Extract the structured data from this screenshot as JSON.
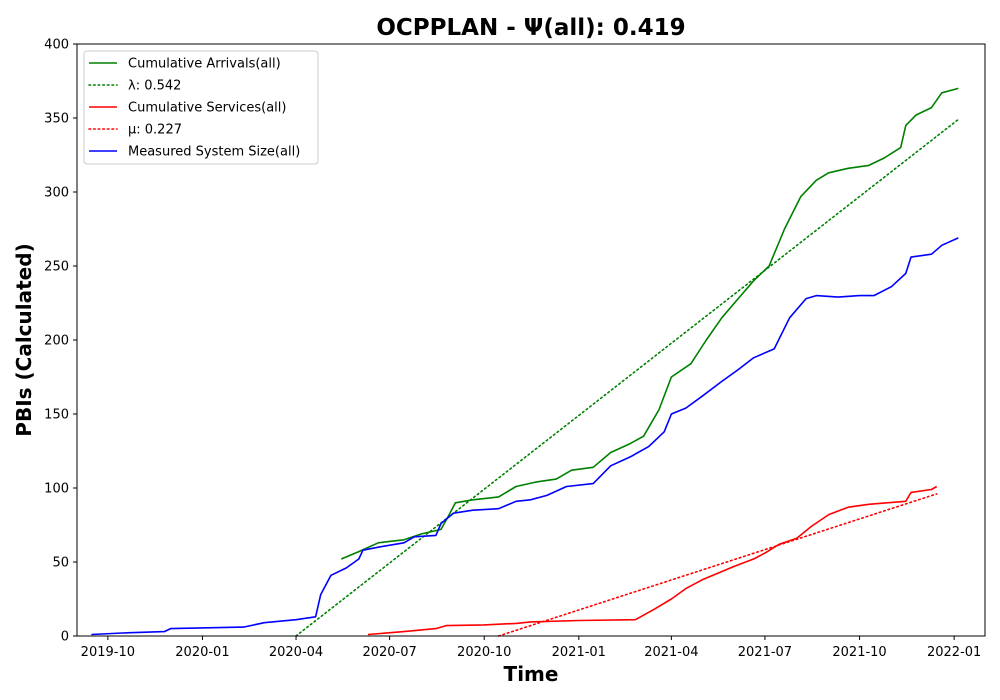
{
  "chart_data": {
    "type": "line",
    "title": "OCPPLAN -  Ψ(all): 0.419",
    "xlabel": "Time",
    "ylabel": "PBIs (Calculated)",
    "xlim": [
      "2019-09-01",
      "2022-01-31"
    ],
    "ylim": [
      0,
      400
    ],
    "x_ticks": [
      "2019-10",
      "2020-01",
      "2020-04",
      "2020-07",
      "2020-10",
      "2021-01",
      "2021-04",
      "2021-07",
      "2021-10",
      "2022-01"
    ],
    "y_ticks": [
      0,
      50,
      100,
      150,
      200,
      250,
      300,
      350,
      400
    ],
    "grid": false,
    "legend_position": "top-left",
    "series": [
      {
        "name": "Cumulative Arrivals(all)",
        "color": "#008000",
        "style": "solid",
        "points": [
          [
            "2020-05-15",
            52
          ],
          [
            "2020-06-01",
            57
          ],
          [
            "2020-06-20",
            63
          ],
          [
            "2020-07-15",
            65
          ],
          [
            "2020-08-01",
            69
          ],
          [
            "2020-08-20",
            72
          ],
          [
            "2020-08-28",
            82
          ],
          [
            "2020-09-03",
            90
          ],
          [
            "2020-09-20",
            92
          ],
          [
            "2020-10-15",
            94
          ],
          [
            "2020-11-01",
            101
          ],
          [
            "2020-11-20",
            104
          ],
          [
            "2020-12-10",
            106
          ],
          [
            "2020-12-25",
            112
          ],
          [
            "2021-01-15",
            114
          ],
          [
            "2021-02-01",
            124
          ],
          [
            "2021-02-20",
            130
          ],
          [
            "2021-03-05",
            135
          ],
          [
            "2021-03-20",
            153
          ],
          [
            "2021-04-01",
            175
          ],
          [
            "2021-04-20",
            184
          ],
          [
            "2021-05-05",
            200
          ],
          [
            "2021-05-20",
            215
          ],
          [
            "2021-06-05",
            228
          ],
          [
            "2021-06-20",
            240
          ],
          [
            "2021-07-05",
            250
          ],
          [
            "2021-07-20",
            275
          ],
          [
            "2021-08-05",
            297
          ],
          [
            "2021-08-20",
            308
          ],
          [
            "2021-09-01",
            313
          ],
          [
            "2021-09-20",
            316
          ],
          [
            "2021-10-10",
            318
          ],
          [
            "2021-10-25",
            323
          ],
          [
            "2021-11-10",
            330
          ],
          [
            "2021-11-15",
            345
          ],
          [
            "2021-11-25",
            352
          ],
          [
            "2021-12-10",
            357
          ],
          [
            "2021-12-20",
            367
          ],
          [
            "2022-01-05",
            370
          ]
        ]
      },
      {
        "name": "λ: 0.542",
        "color": "#008000",
        "style": "dotted",
        "points": [
          [
            "2020-04-01",
            0
          ],
          [
            "2022-01-05",
            349
          ]
        ]
      },
      {
        "name": "Cumulative Services(all)",
        "color": "#ff0000",
        "style": "solid",
        "points": [
          [
            "2020-06-10",
            1
          ],
          [
            "2020-07-15",
            3
          ],
          [
            "2020-08-15",
            5
          ],
          [
            "2020-08-25",
            7
          ],
          [
            "2020-10-01",
            7.5
          ],
          [
            "2020-11-01",
            8.5
          ],
          [
            "2020-11-15",
            9.5
          ],
          [
            "2021-01-01",
            10.5
          ],
          [
            "2021-02-25",
            11
          ],
          [
            "2021-03-15",
            18
          ],
          [
            "2021-04-01",
            25
          ],
          [
            "2021-04-15",
            32
          ],
          [
            "2021-05-01",
            38
          ],
          [
            "2021-05-15",
            42
          ],
          [
            "2021-06-01",
            47
          ],
          [
            "2021-06-20",
            52
          ],
          [
            "2021-07-01",
            56
          ],
          [
            "2021-07-15",
            62
          ],
          [
            "2021-08-01",
            66
          ],
          [
            "2021-08-15",
            74
          ],
          [
            "2021-09-01",
            82
          ],
          [
            "2021-09-20",
            87
          ],
          [
            "2021-10-10",
            89
          ],
          [
            "2021-11-15",
            91
          ],
          [
            "2021-11-20",
            97
          ],
          [
            "2021-12-10",
            99
          ],
          [
            "2021-12-15",
            101
          ]
        ]
      },
      {
        "name": "μ: 0.227",
        "color": "#ff0000",
        "style": "dotted",
        "points": [
          [
            "2020-10-15",
            0
          ],
          [
            "2021-12-15",
            96
          ]
        ]
      },
      {
        "name": "Measured System Size(all)",
        "color": "#0000ff",
        "style": "solid",
        "points": [
          [
            "2019-09-15",
            1
          ],
          [
            "2019-10-15",
            2
          ],
          [
            "2019-11-25",
            3
          ],
          [
            "2019-12-01",
            5
          ],
          [
            "2020-02-10",
            6
          ],
          [
            "2020-03-01",
            9
          ],
          [
            "2020-04-01",
            11
          ],
          [
            "2020-04-20",
            13
          ],
          [
            "2020-04-25",
            28
          ],
          [
            "2020-05-05",
            41
          ],
          [
            "2020-05-20",
            46
          ],
          [
            "2020-06-01",
            52
          ],
          [
            "2020-06-05",
            58
          ],
          [
            "2020-06-20",
            60
          ],
          [
            "2020-07-15",
            63
          ],
          [
            "2020-07-25",
            67
          ],
          [
            "2020-08-15",
            68
          ],
          [
            "2020-08-20",
            76
          ],
          [
            "2020-09-01",
            83
          ],
          [
            "2020-09-20",
            85
          ],
          [
            "2020-10-15",
            86
          ],
          [
            "2020-11-01",
            91
          ],
          [
            "2020-11-15",
            92
          ],
          [
            "2020-12-01",
            95
          ],
          [
            "2020-12-20",
            101
          ],
          [
            "2021-01-15",
            103
          ],
          [
            "2021-02-01",
            115
          ],
          [
            "2021-02-20",
            121
          ],
          [
            "2021-03-10",
            128
          ],
          [
            "2021-03-25",
            138
          ],
          [
            "2021-04-01",
            150
          ],
          [
            "2021-04-15",
            154
          ],
          [
            "2021-05-01",
            162
          ],
          [
            "2021-05-20",
            172
          ],
          [
            "2021-06-05",
            180
          ],
          [
            "2021-06-20",
            188
          ],
          [
            "2021-07-10",
            194
          ],
          [
            "2021-07-25",
            215
          ],
          [
            "2021-08-10",
            228
          ],
          [
            "2021-08-20",
            230
          ],
          [
            "2021-09-10",
            229
          ],
          [
            "2021-10-01",
            230
          ],
          [
            "2021-10-15",
            230
          ],
          [
            "2021-11-01",
            236
          ],
          [
            "2021-11-15",
            245
          ],
          [
            "2021-11-20",
            256
          ],
          [
            "2021-12-10",
            258
          ],
          [
            "2021-12-20",
            264
          ],
          [
            "2022-01-05",
            269
          ]
        ]
      }
    ]
  }
}
